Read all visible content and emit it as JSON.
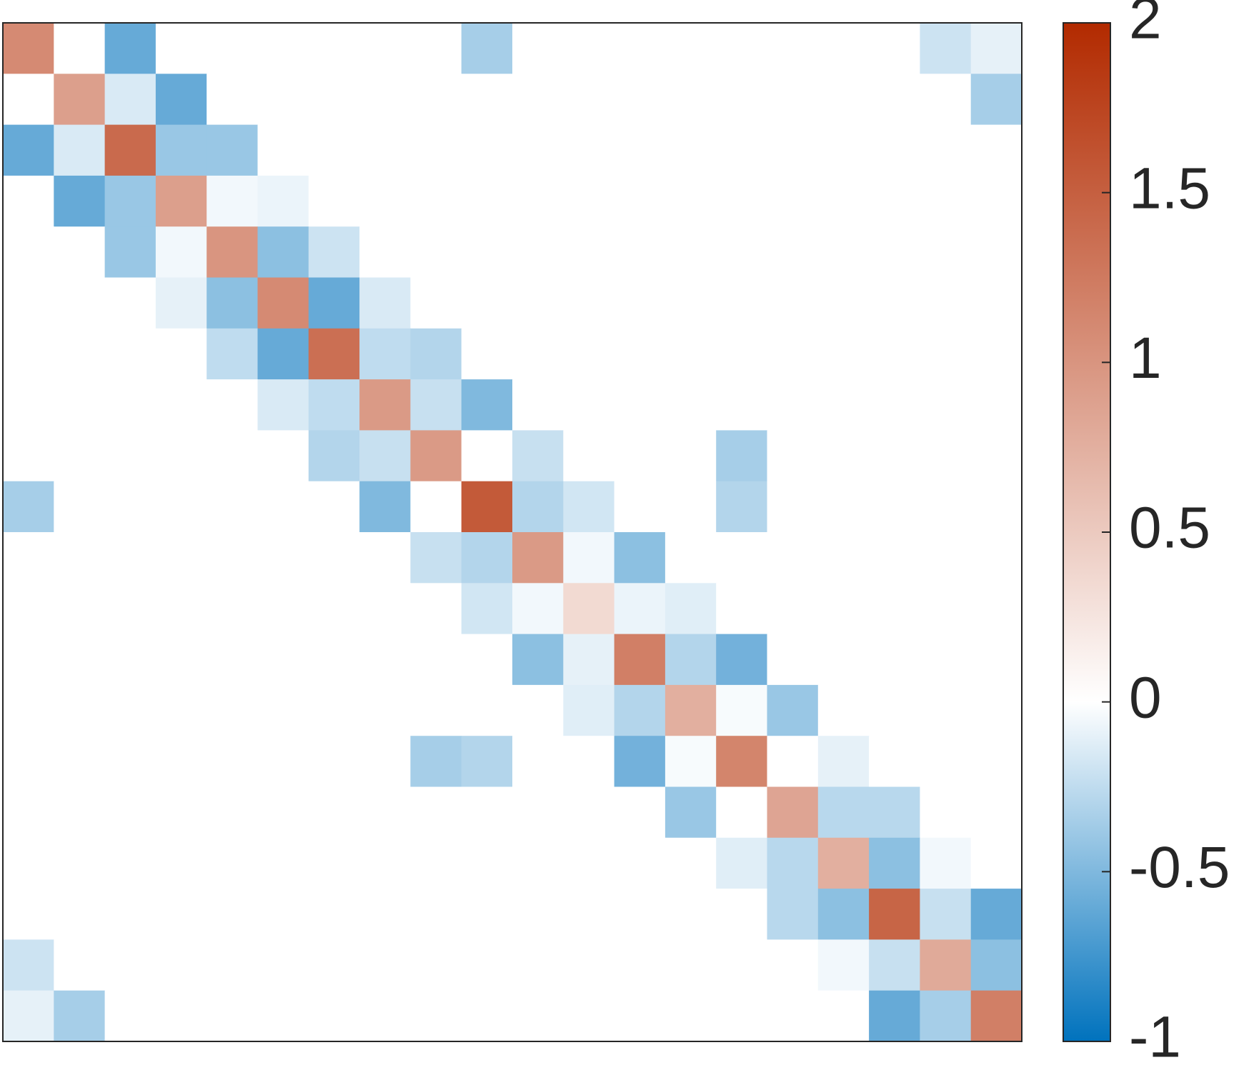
{
  "chart_data": {
    "type": "heatmap",
    "title": "",
    "xlabel": "",
    "ylabel": "",
    "rows": 20,
    "cols": 20,
    "x_ticks": [],
    "y_ticks": [],
    "grid": false,
    "matrix": [
      [
        1.1,
        0,
        -0.6,
        0,
        0,
        0,
        0,
        0,
        0,
        -0.35,
        0,
        0,
        0,
        0,
        0,
        0,
        0,
        0,
        -0.2,
        -0.1
      ],
      [
        0,
        0.9,
        -0.15,
        -0.6,
        0,
        0,
        0,
        0,
        0,
        0,
        0,
        0,
        0,
        0,
        0,
        0,
        0,
        0,
        0,
        -0.35
      ],
      [
        -0.6,
        -0.15,
        1.4,
        -0.4,
        -0.4,
        0,
        0,
        0,
        0,
        0,
        0,
        0,
        0,
        0,
        0,
        0,
        0,
        0,
        0,
        0
      ],
      [
        0,
        -0.6,
        -0.4,
        0.9,
        -0.05,
        -0.08,
        0,
        0,
        0,
        0,
        0,
        0,
        0,
        0,
        0,
        0,
        0,
        0,
        0,
        0
      ],
      [
        0,
        0,
        -0.4,
        -0.05,
        1.0,
        -0.45,
        -0.2,
        0,
        0,
        0,
        0,
        0,
        0,
        0,
        0,
        0,
        0,
        0,
        0,
        0
      ],
      [
        0,
        0,
        0,
        -0.1,
        -0.45,
        1.1,
        -0.6,
        -0.15,
        0,
        0,
        0,
        0,
        0,
        0,
        0,
        0,
        0,
        0,
        0,
        0
      ],
      [
        0,
        0,
        0,
        0,
        -0.25,
        -0.6,
        1.35,
        -0.25,
        -0.3,
        0,
        0,
        0,
        0,
        0,
        0,
        0,
        0,
        0,
        0,
        0
      ],
      [
        0,
        0,
        0,
        0,
        0,
        -0.15,
        -0.25,
        0.95,
        -0.22,
        -0.5,
        0,
        0,
        0,
        0,
        0,
        0,
        0,
        0,
        0,
        0
      ],
      [
        0,
        0,
        0,
        0,
        0,
        0,
        -0.3,
        -0.22,
        0.95,
        0,
        -0.22,
        0,
        0,
        0,
        -0.35,
        0,
        0,
        0,
        0,
        0
      ],
      [
        -0.35,
        0,
        0,
        0,
        0,
        0,
        0,
        -0.5,
        0,
        1.55,
        -0.3,
        -0.18,
        0,
        0,
        -0.3,
        0,
        0,
        0,
        0,
        0
      ],
      [
        0,
        0,
        0,
        0,
        0,
        0,
        0,
        0,
        -0.22,
        -0.3,
        0.95,
        -0.05,
        -0.45,
        0,
        0,
        0,
        0,
        0,
        0,
        0
      ],
      [
        0,
        0,
        0,
        0,
        0,
        0,
        0,
        0,
        0,
        -0.18,
        -0.05,
        0.35,
        -0.08,
        -0.12,
        0,
        0,
        0,
        0,
        0,
        0
      ],
      [
        0,
        0,
        0,
        0,
        0,
        0,
        0,
        0,
        0,
        0,
        -0.45,
        -0.1,
        1.2,
        -0.3,
        -0.55,
        0,
        0,
        0,
        0,
        0
      ],
      [
        0,
        0,
        0,
        0,
        0,
        0,
        0,
        0,
        0,
        0,
        0,
        -0.12,
        -0.3,
        0.75,
        -0.03,
        -0.4,
        0,
        0,
        0,
        0
      ],
      [
        0,
        0,
        0,
        0,
        0,
        0,
        0,
        0,
        -0.35,
        -0.3,
        0,
        0,
        -0.55,
        -0.03,
        1.15,
        0,
        -0.1,
        0,
        0,
        0
      ],
      [
        0,
        0,
        0,
        0,
        0,
        0,
        0,
        0,
        0,
        0,
        0,
        0,
        0,
        -0.4,
        0,
        0.85,
        -0.28,
        -0.28,
        0,
        0
      ],
      [
        0,
        0,
        0,
        0,
        0,
        0,
        0,
        0,
        0,
        0,
        0,
        0,
        0,
        0,
        -0.12,
        -0.28,
        0.75,
        -0.45,
        -0.05,
        0
      ],
      [
        0,
        0,
        0,
        0,
        0,
        0,
        0,
        0,
        0,
        0,
        0,
        0,
        0,
        0,
        0,
        -0.28,
        -0.45,
        1.45,
        -0.22,
        -0.6
      ],
      [
        -0.2,
        0,
        0,
        0,
        0,
        0,
        0,
        0,
        0,
        0,
        0,
        0,
        0,
        0,
        0,
        0,
        -0.05,
        -0.22,
        0.8,
        -0.45
      ],
      [
        -0.1,
        -0.35,
        0,
        0,
        0,
        0,
        0,
        0,
        0,
        0,
        0,
        0,
        0,
        0,
        0,
        0,
        0,
        -0.6,
        -0.35,
        1.2
      ]
    ],
    "colorbar": {
      "min": -1,
      "max": 2,
      "ticks": [
        -1,
        -0.5,
        0,
        0.5,
        1,
        1.5,
        2
      ],
      "tick_labels": [
        "-1",
        "-0.5",
        "0",
        "0.5",
        "1",
        "1.5",
        "2"
      ],
      "colors": {
        "negative_end": "#0072BD",
        "zero": "#FFFFFF",
        "positive_end": "#B22A00"
      }
    }
  }
}
